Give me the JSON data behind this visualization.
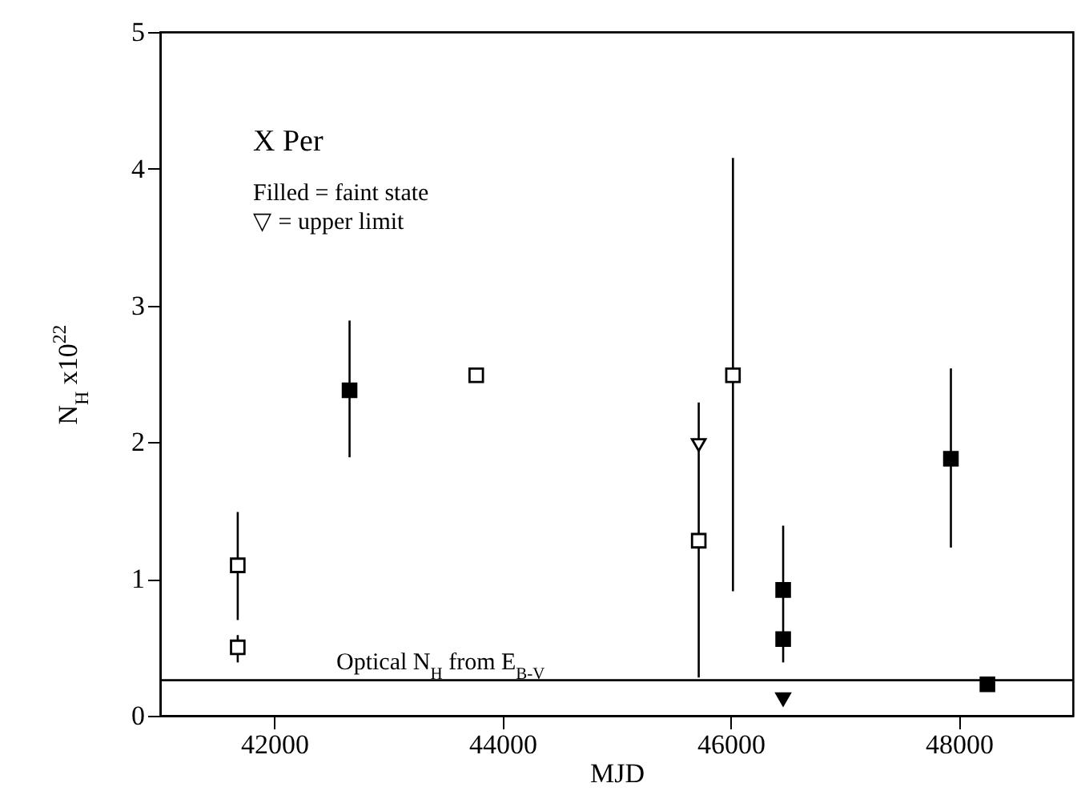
{
  "chart_data": {
    "type": "scatter",
    "xlabel": "MJD",
    "ylabel": "N$_{H}$ x10$^{22}$",
    "xlim": [
      41000,
      49000
    ],
    "xticks": [
      42000,
      44000,
      46000,
      48000
    ],
    "ylim": [
      0,
      5
    ],
    "yticks": [
      0,
      1,
      2,
      3,
      4,
      5
    ],
    "grid": false,
    "series": [
      {
        "color": "#ffffff",
        "marker": "square",
        "x": [
          41680,
          41680,
          43770,
          45720,
          46020
        ],
        "values": [
          1.1,
          0.5,
          2.49,
          1.28,
          2.49
        ],
        "errors": [
          [
            0.7,
            1.49
          ],
          [
            0.39,
            0.59
          ],
          null,
          [
            0.28,
            2.29
          ],
          [
            0.91,
            4.08
          ]
        ]
      },
      {
        "color": "#000000",
        "marker": "square",
        "x": [
          42660,
          46460,
          46460,
          47930,
          48250
        ],
        "values": [
          2.38,
          0.92,
          0.56,
          1.88,
          0.23
        ],
        "errors": [
          [
            1.89,
            2.89
          ],
          [
            0.39,
            1.39
          ],
          null,
          [
            1.23,
            2.54
          ],
          null
        ]
      },
      {
        "color": "#ffffff",
        "marker": "triangle",
        "x": [
          45720
        ],
        "values": [
          1.98
        ]
      },
      {
        "color": "#000000",
        "marker": "triangle",
        "x": [
          46460
        ],
        "values": [
          0.12
        ]
      }
    ],
    "ref_lines": [
      {
        "axis": "y",
        "value": 0.26,
        "label": "Optical N$_{H}$ from E$_{B-V}$",
        "color": "#000000"
      }
    ],
    "annotations": [
      "X Per",
      "Filled = faint state",
      "▽ = upper limit"
    ]
  }
}
